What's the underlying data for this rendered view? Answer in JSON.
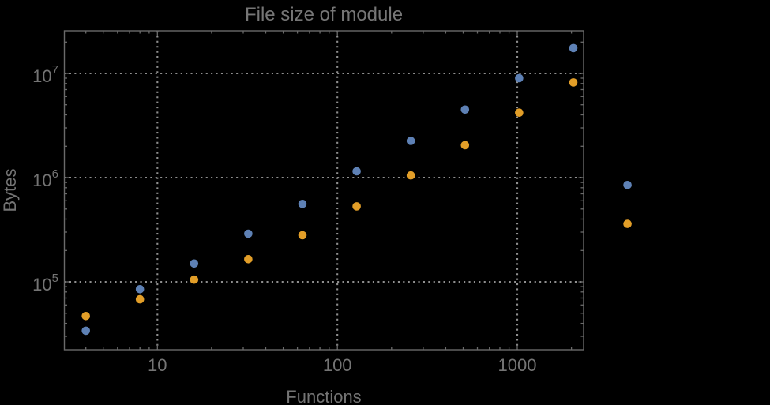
{
  "chart_data": {
    "type": "scatter",
    "title": "File size of module",
    "xlabel": "Functions",
    "ylabel": "Bytes",
    "x_scale": "log",
    "y_scale": "log",
    "xlim": [
      3.04,
      2336
    ],
    "ylim": [
      22320,
      25650000
    ],
    "grid": "major-dotted",
    "legend": "none",
    "x_ticks": [
      {
        "v": 10,
        "label": "10"
      },
      {
        "v": 100,
        "label": "100"
      },
      {
        "v": 1000,
        "label": "1000"
      }
    ],
    "y_ticks": [
      {
        "v": 100000,
        "base": "10",
        "exp": "5"
      },
      {
        "v": 1000000,
        "base": "10",
        "exp": "6"
      },
      {
        "v": 10000000,
        "base": "10",
        "exp": "7"
      }
    ],
    "x": [
      4,
      8,
      16,
      32,
      64,
      128,
      256,
      512,
      1024,
      2048,
      4096
    ],
    "series": [
      {
        "name": "series-1-blue",
        "color": "#5E81B5",
        "values": [
          34000,
          85000,
          150000,
          290000,
          560000,
          1150000,
          2250000,
          4500000,
          9000000,
          17500000,
          850000
        ]
      },
      {
        "name": "series-2-orange",
        "color": "#E29E28",
        "values": [
          47000,
          68000,
          105000,
          165000,
          280000,
          530000,
          1050000,
          2050000,
          4200000,
          8200000,
          360000
        ]
      }
    ],
    "colors": {
      "background": "#000000",
      "frame": "#6a6a6a",
      "grid": "#8f8f8f",
      "text": "#747474"
    },
    "marker_radius": 5.3
  }
}
